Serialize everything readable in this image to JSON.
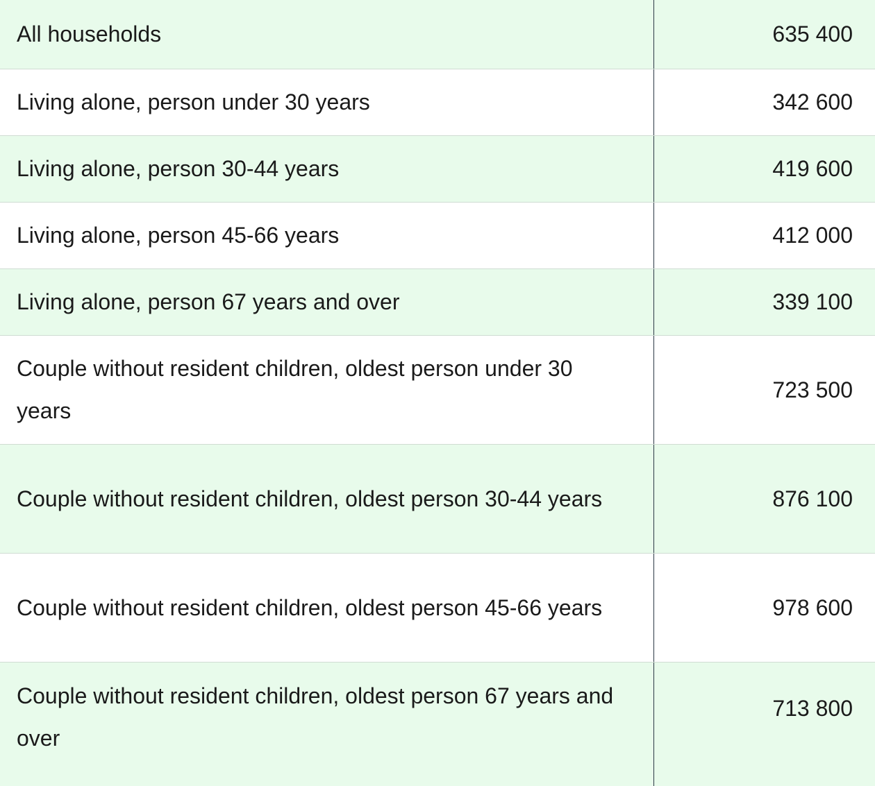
{
  "table": {
    "rows": [
      {
        "label": "All households",
        "value": "635 400"
      },
      {
        "label": "Living alone, person under 30 years",
        "value": "342 600"
      },
      {
        "label": "Living alone, person 30-44 years",
        "value": "419 600"
      },
      {
        "label": "Living alone, person 45-66 years",
        "value": "412 000"
      },
      {
        "label": "Living alone, person 67 years and over",
        "value": "339 100"
      },
      {
        "label": "Couple without resident children, oldest person under 30 years",
        "value": "723 500"
      },
      {
        "label": "Couple without resident children, oldest person 30-44 years",
        "value": "876 100"
      },
      {
        "label": "Couple without resident children, oldest person 45-66 years",
        "value": "978 600"
      },
      {
        "label": "Couple without resident children, oldest person 67 years and over",
        "value": "713 800"
      }
    ]
  },
  "colors": {
    "shaded_row": "#e8fbeb",
    "plain_row": "#ffffff",
    "column_divider": "#2c3845"
  }
}
